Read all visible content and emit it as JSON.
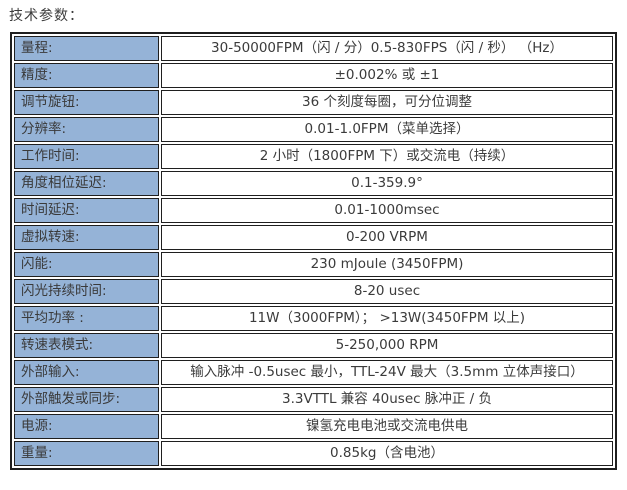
{
  "page": {
    "title": "技术参数："
  },
  "colors": {
    "label_background": "#95b3d7",
    "border": "#1f1f1f",
    "text": "#3b3b3b",
    "page_background": "#ffffff"
  },
  "table": {
    "rows": [
      {
        "label": "量程:",
        "value": "30-50000FPM（闪 / 分）0.5-830FPS（闪 / 秒） （Hz）"
      },
      {
        "label": "精度:",
        "value": "±0.002% 或 ±1"
      },
      {
        "label": "调节旋钮:",
        "value": "36 个刻度每圈，可分位调整"
      },
      {
        "label": "分辨率:",
        "value": "0.01-1.0FPM（菜单选择）"
      },
      {
        "label": "工作时间:",
        "value": "2 小时（1800FPM 下）或交流电（持续）"
      },
      {
        "label": "角度相位延迟:",
        "value": "0.1-359.9°"
      },
      {
        "label": "时间延迟:",
        "value": "0.01-1000msec"
      },
      {
        "label": "虚拟转速:",
        "value": "0-200 VRPM"
      },
      {
        "label": "闪能:",
        "value": "230 mJoule (3450FPM)"
      },
      {
        "label": "闪光持续时间:",
        "value": "8-20 usec"
      },
      {
        "label": "平均功率 :",
        "value": "11W（3000FPM）； >13W(3450FPM 以上)"
      },
      {
        "label": "转速表模式:",
        "value": "5-250,000 RPM"
      },
      {
        "label": "外部输入:",
        "value": "输入脉冲 -0.5usec 最小，TTL-24V 最大（3.5mm 立体声接口）"
      },
      {
        "label": "外部触发或同步:",
        "value": "3.3VTTL 兼容 40usec 脉冲正 / 负"
      },
      {
        "label": "电源:",
        "value": "镍氢充电电池或交流电供电"
      },
      {
        "label": "重量:",
        "value": "0.85kg（含电池）"
      }
    ]
  }
}
